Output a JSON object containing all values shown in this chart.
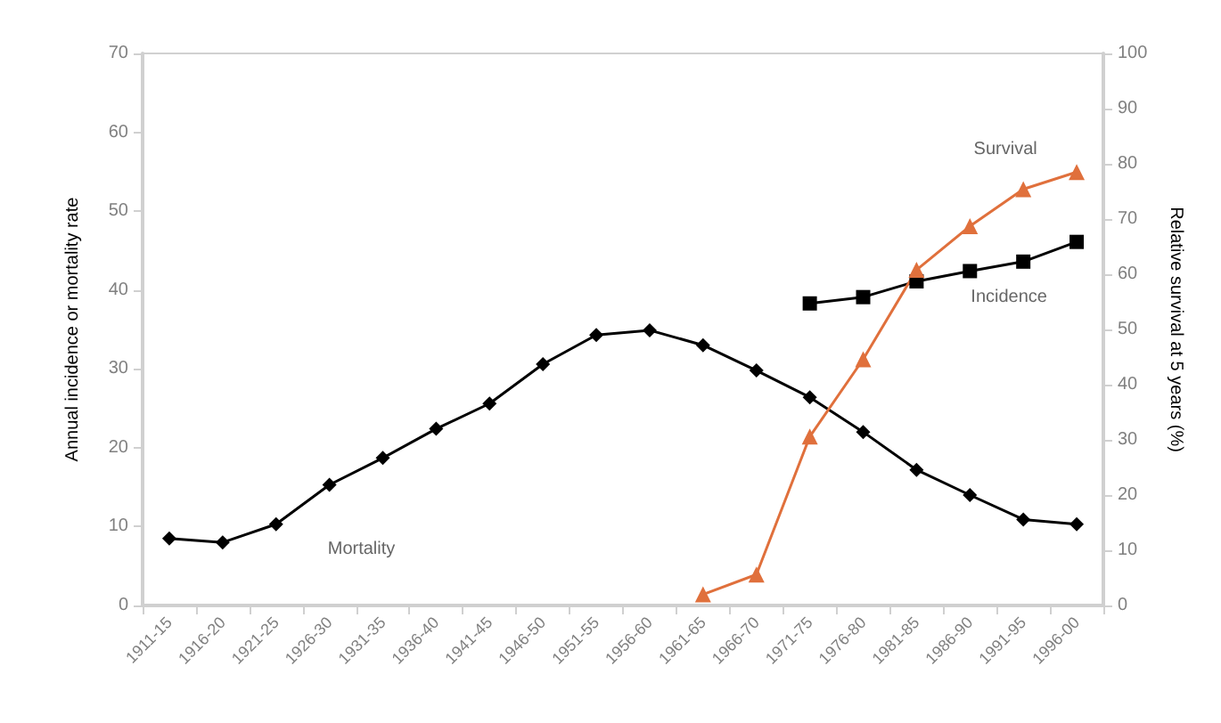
{
  "chart_data": {
    "type": "line",
    "ylabel": "Annual incidence or mortality rate",
    "y2label": "Relative survival at 5 years (%)",
    "categories": [
      "1911-15",
      "1916-20",
      "1921-25",
      "1926-30",
      "1931-35",
      "1936-40",
      "1941-45",
      "1946-50",
      "1951-55",
      "1956-60",
      "1961-65",
      "1966-70",
      "1971-75",
      "1976-80",
      "1981-85",
      "1986-90",
      "1991-95",
      "1996-00"
    ],
    "series": [
      {
        "name": "Mortality",
        "color": "#000000",
        "marker": "diamond",
        "values": [
          8.5,
          8.0,
          10.3,
          15.3,
          18.7,
          22.4,
          25.6,
          30.6,
          34.3,
          34.9,
          33.0,
          29.8,
          26.4,
          22.0,
          17.2,
          14.0,
          10.9,
          10.3
        ]
      },
      {
        "name": "Incidence",
        "color": "#000000",
        "marker": "square",
        "values": [
          null,
          null,
          null,
          null,
          null,
          null,
          null,
          null,
          null,
          null,
          null,
          null,
          38.3,
          39.1,
          41.1,
          42.4,
          43.6,
          46.1
        ]
      },
      {
        "name": "Survival",
        "color": "#e0703c",
        "marker": "triangle",
        "axis": "y2",
        "values": [
          null,
          null,
          null,
          null,
          null,
          null,
          null,
          null,
          null,
          null,
          2,
          5.6,
          30.6,
          44.6,
          60.8,
          68.7,
          75.4,
          78.5
        ]
      }
    ],
    "ylim": [
      0,
      70
    ],
    "yticks": [
      0,
      10,
      20,
      30,
      40,
      50,
      60,
      70
    ],
    "y2lim": [
      0,
      100
    ],
    "y2ticks": [
      0,
      10,
      20,
      30,
      40,
      50,
      60,
      70,
      80,
      90,
      100
    ],
    "grid": false,
    "legend": false,
    "line_style": "solid"
  }
}
